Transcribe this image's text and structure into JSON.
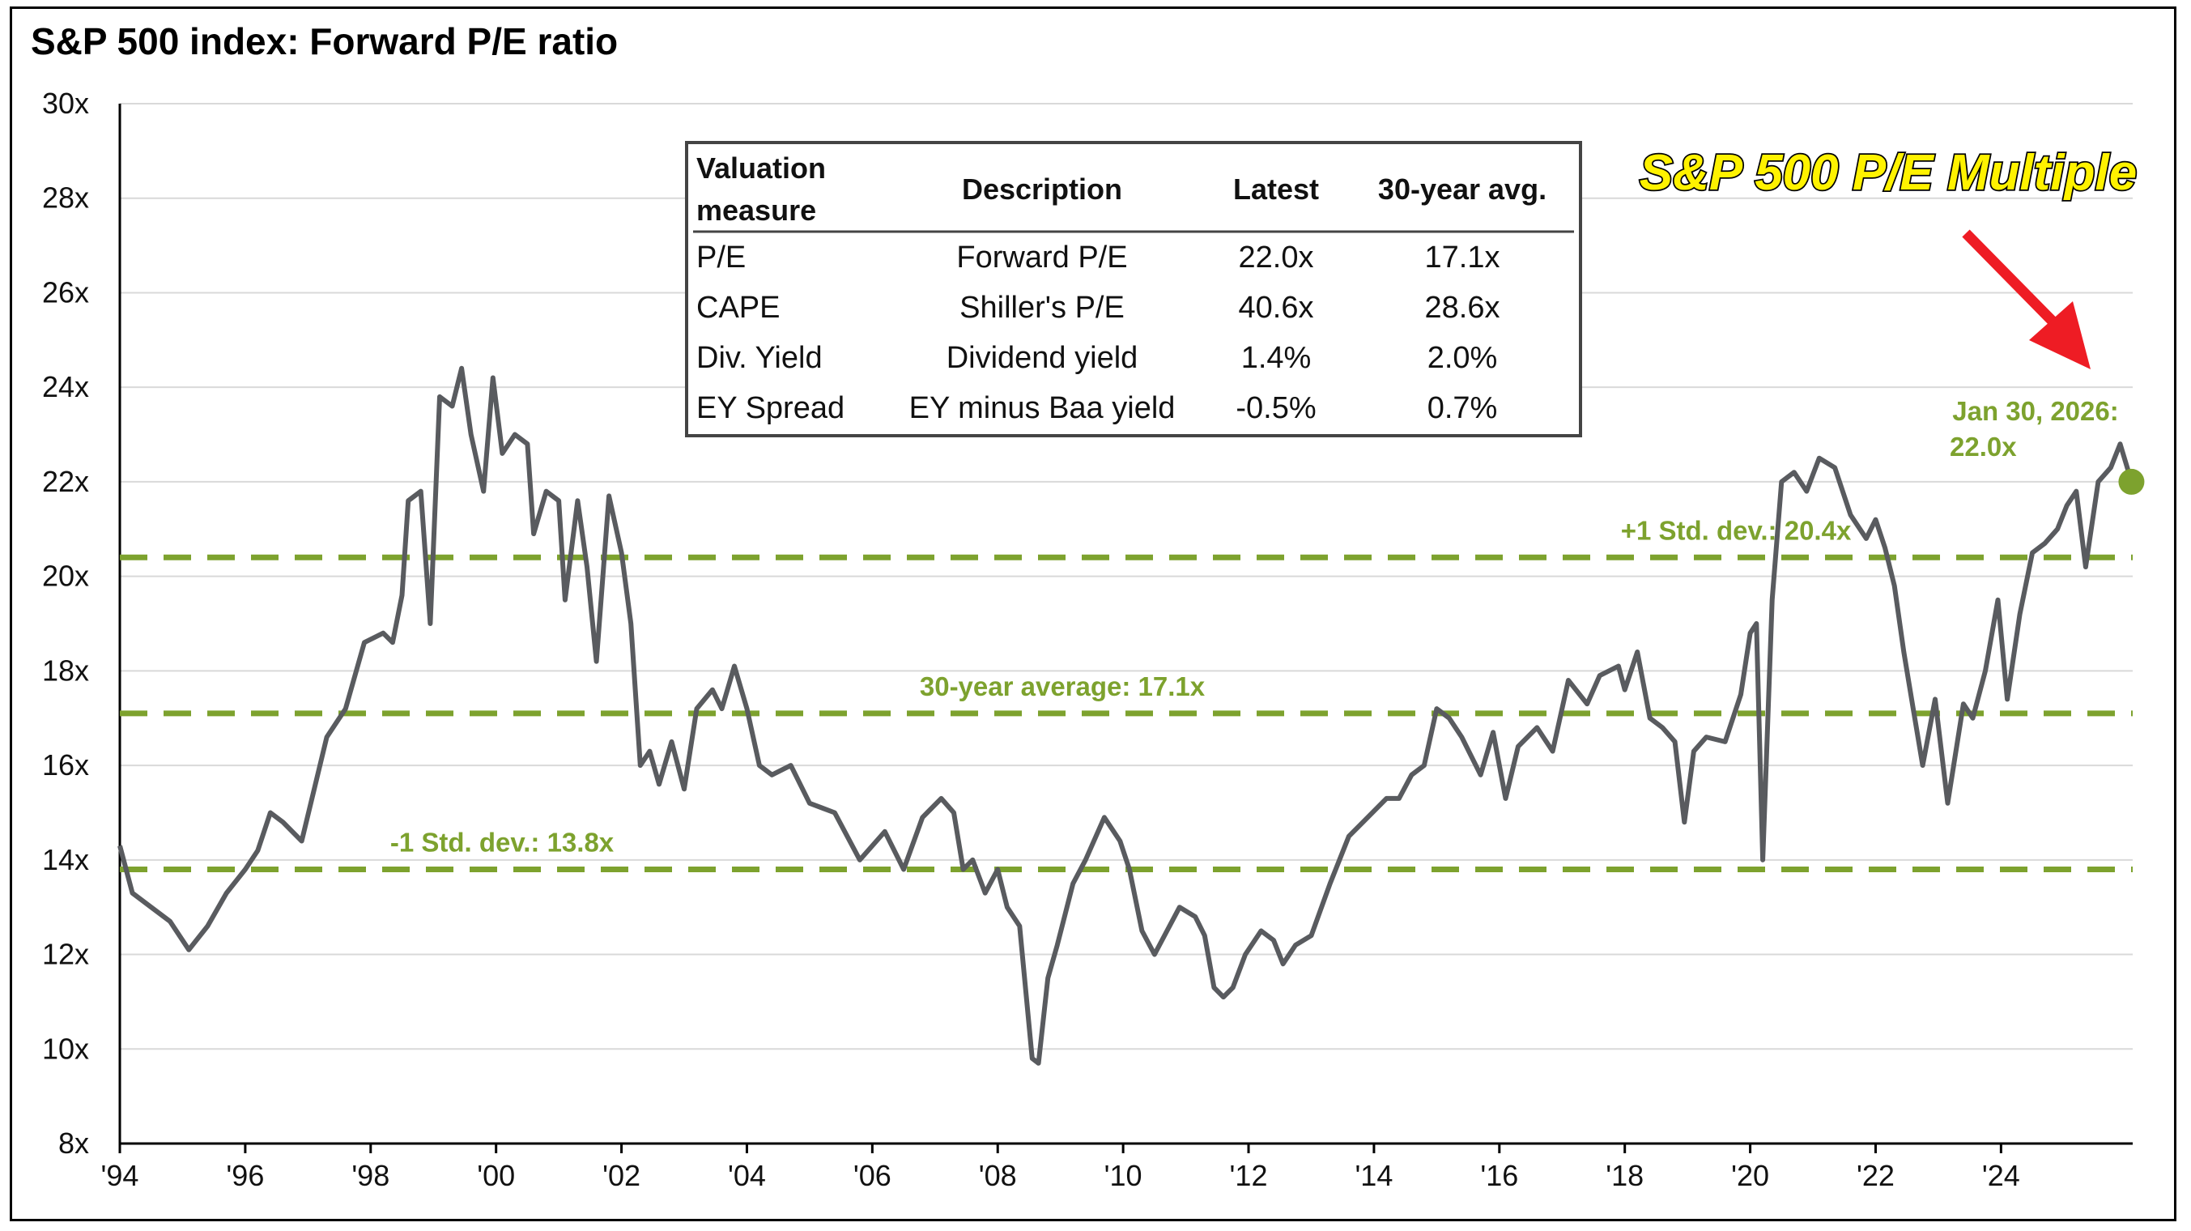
{
  "title": "S&P 500 index: Forward P/E ratio",
  "callout": "S&P 500 P/E Multiple",
  "colors": {
    "series": "#595b5f",
    "reference": "#7da22e",
    "arrow": "#ee1c24",
    "callout_fill": "#fff200"
  },
  "chart_data": {
    "type": "line",
    "title": "S&P 500 index: Forward P/E ratio",
    "ylim": [
      8,
      30
    ],
    "xlim": [
      1994,
      2026.1
    ],
    "yticks": [
      8,
      10,
      12,
      14,
      16,
      18,
      20,
      22,
      24,
      26,
      28,
      30
    ],
    "ytick_labels": [
      "8x",
      "10x",
      "12x",
      "14x",
      "16x",
      "18x",
      "20x",
      "22x",
      "24x",
      "26x",
      "28x",
      "30x"
    ],
    "xticks": [
      1994,
      1996,
      1998,
      2000,
      2002,
      2004,
      2006,
      2008,
      2010,
      2012,
      2014,
      2016,
      2018,
      2020,
      2022,
      2024
    ],
    "xtick_labels": [
      "'94",
      "'96",
      "'98",
      "'00",
      "'02",
      "'04",
      "'06",
      "'08",
      "'10",
      "'12",
      "'14",
      "'16",
      "'18",
      "'20",
      "'22",
      "'24"
    ],
    "grid": "horizontal",
    "series": [
      {
        "name": "Forward P/E",
        "x": [
          1994.0,
          1994.2,
          1994.5,
          1994.8,
          1995.1,
          1995.4,
          1995.7,
          1996.0,
          1996.2,
          1996.4,
          1996.6,
          1996.9,
          1997.1,
          1997.3,
          1997.6,
          1997.9,
          1998.2,
          1998.35,
          1998.5,
          1998.6,
          1998.8,
          1998.95,
          1999.1,
          1999.3,
          1999.45,
          1999.6,
          1999.8,
          1999.95,
          2000.1,
          2000.3,
          2000.5,
          2000.6,
          2000.8,
          2001.0,
          2001.1,
          2001.3,
          2001.45,
          2001.6,
          2001.8,
          2002.0,
          2002.15,
          2002.3,
          2002.45,
          2002.6,
          2002.8,
          2003.0,
          2003.2,
          2003.45,
          2003.6,
          2003.8,
          2004.0,
          2004.2,
          2004.4,
          2004.7,
          2005.0,
          2005.4,
          2005.8,
          2006.2,
          2006.5,
          2006.8,
          2007.1,
          2007.3,
          2007.45,
          2007.6,
          2007.8,
          2008.0,
          2008.15,
          2008.35,
          2008.55,
          2008.65,
          2008.8,
          2008.95,
          2009.2,
          2009.4,
          2009.7,
          2009.95,
          2010.1,
          2010.3,
          2010.5,
          2010.7,
          2010.9,
          2011.15,
          2011.3,
          2011.45,
          2011.6,
          2011.75,
          2011.95,
          2012.2,
          2012.4,
          2012.55,
          2012.75,
          2013.0,
          2013.3,
          2013.6,
          2013.9,
          2014.2,
          2014.4,
          2014.6,
          2014.8,
          2015.0,
          2015.2,
          2015.4,
          2015.7,
          2015.9,
          2016.1,
          2016.3,
          2016.6,
          2016.85,
          2017.1,
          2017.4,
          2017.6,
          2017.9,
          2018.0,
          2018.2,
          2018.4,
          2018.6,
          2018.8,
          2018.95,
          2019.1,
          2019.3,
          2019.6,
          2019.85,
          2020.0,
          2020.1,
          2020.2,
          2020.35,
          2020.5,
          2020.7,
          2020.9,
          2021.1,
          2021.35,
          2021.6,
          2021.85,
          2022.0,
          2022.15,
          2022.3,
          2022.45,
          2022.6,
          2022.75,
          2022.95,
          2023.15,
          2023.4,
          2023.55,
          2023.75,
          2023.95,
          2024.1,
          2024.3,
          2024.5,
          2024.7,
          2024.9,
          2025.05,
          2025.2,
          2025.35,
          2025.55,
          2025.75,
          2025.9,
          2026.08
        ],
        "values": [
          14.3,
          13.3,
          13.0,
          12.7,
          12.1,
          12.6,
          13.3,
          13.8,
          14.2,
          15.0,
          14.8,
          14.4,
          15.5,
          16.6,
          17.2,
          18.6,
          18.8,
          18.6,
          19.6,
          21.6,
          21.8,
          19.0,
          23.8,
          23.6,
          24.4,
          23.0,
          21.8,
          24.2,
          22.6,
          23.0,
          22.8,
          20.9,
          21.8,
          21.6,
          19.5,
          21.6,
          20.2,
          18.2,
          21.7,
          20.5,
          19.0,
          16.0,
          16.3,
          15.6,
          16.5,
          15.5,
          17.2,
          17.6,
          17.2,
          18.1,
          17.2,
          16.0,
          15.8,
          16.0,
          15.2,
          15.0,
          14.0,
          14.6,
          13.8,
          14.9,
          15.3,
          15.0,
          13.8,
          14.0,
          13.3,
          13.8,
          13.0,
          12.6,
          9.8,
          9.7,
          11.5,
          12.2,
          13.5,
          14.0,
          14.9,
          14.4,
          13.8,
          12.5,
          12.0,
          12.5,
          13.0,
          12.8,
          12.4,
          11.3,
          11.1,
          11.3,
          12.0,
          12.5,
          12.3,
          11.8,
          12.2,
          12.4,
          13.5,
          14.5,
          14.9,
          15.3,
          15.3,
          15.8,
          16.0,
          17.2,
          17.0,
          16.6,
          15.8,
          16.7,
          15.3,
          16.4,
          16.8,
          16.3,
          17.8,
          17.3,
          17.9,
          18.1,
          17.6,
          18.4,
          17.0,
          16.8,
          16.5,
          14.8,
          16.3,
          16.6,
          16.5,
          17.5,
          18.8,
          19.0,
          14.0,
          19.5,
          22.0,
          22.2,
          21.8,
          22.5,
          22.3,
          21.3,
          20.8,
          21.2,
          20.6,
          19.8,
          18.4,
          17.2,
          16.0,
          17.4,
          15.2,
          17.3,
          17.0,
          18.0,
          19.5,
          17.4,
          19.2,
          20.5,
          20.7,
          21.0,
          21.5,
          21.8,
          20.2,
          22.0,
          22.3,
          22.8,
          22.0
        ]
      }
    ],
    "reference_lines": [
      {
        "value": 20.4,
        "label": "+1 Std. dev.: 20.4x"
      },
      {
        "value": 17.1,
        "label": "30-year average: 17.1x"
      },
      {
        "value": 13.8,
        "label": "-1 Std. dev.: 13.8x"
      }
    ],
    "latest_point": {
      "x": 2026.08,
      "value": 22.0,
      "label_line1": "Jan 30, 2026:",
      "label_line2": "22.0x"
    }
  },
  "table": {
    "headers": {
      "measure": "Valuation measure",
      "measure_line1": "Valuation",
      "measure_line2": "measure",
      "description": "Description",
      "latest": "Latest",
      "avg": "30-year avg."
    },
    "rows": [
      {
        "measure": "P/E",
        "description": "Forward P/E",
        "latest": "22.0x",
        "avg": "17.1x"
      },
      {
        "measure": "CAPE",
        "description": "Shiller's P/E",
        "latest": "40.6x",
        "avg": "28.6x"
      },
      {
        "measure": "Div. Yield",
        "description": "Dividend yield",
        "latest": "1.4%",
        "avg": "2.0%"
      },
      {
        "measure": "EY Spread",
        "description": "EY minus Baa yield",
        "latest": "-0.5%",
        "avg": "0.7%"
      }
    ]
  }
}
